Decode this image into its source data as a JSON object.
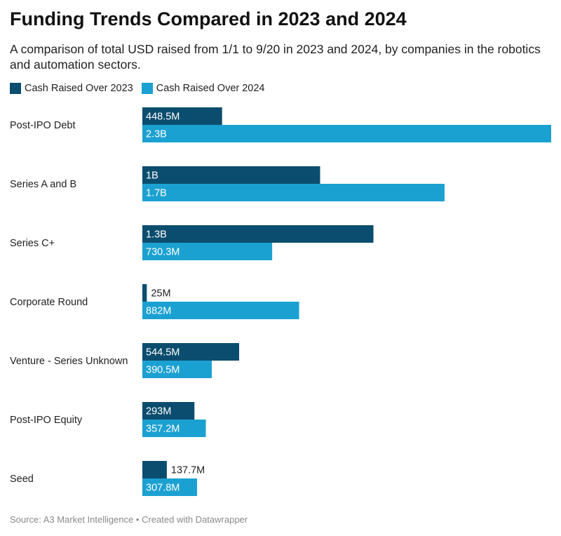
{
  "chart_data": {
    "type": "bar",
    "orientation": "horizontal",
    "title": "Funding Trends Compared in 2023 and 2024",
    "subtitle": "A comparison of total USD raised from 1/1 to 9/20 in 2023 and 2024, by companies in the robotics and automation sectors.",
    "categories": [
      "Post-IPO Debt",
      "Series A and B",
      "Series C+",
      "Corporate Round",
      "Venture - Series Unknown",
      "Post-IPO Equity",
      "Seed"
    ],
    "unit": "USD millions",
    "xlim": [
      0,
      2300
    ],
    "series": [
      {
        "name": "Cash Raised Over 2023",
        "color": "#0b4d6e",
        "values": [
          448.5,
          1000,
          1300,
          25,
          544.5,
          293,
          137.7
        ],
        "labels": [
          "448.5M",
          "1B",
          "1.3B",
          "25M",
          "544.5M",
          "293M",
          "137.7M"
        ]
      },
      {
        "name": "Cash Raised Over 2024",
        "color": "#1ba1d1",
        "values": [
          2300,
          1700,
          730.3,
          882,
          390.5,
          357.2,
          307.8
        ],
        "labels": [
          "2.3B",
          "1.7B",
          "730.3M",
          "882M",
          "390.5M",
          "357.2M",
          "307.8M"
        ]
      }
    ],
    "legend_position": "top-left",
    "grid": false
  },
  "source": "Source: A3 Market Intelligence • Created with Datawrapper"
}
